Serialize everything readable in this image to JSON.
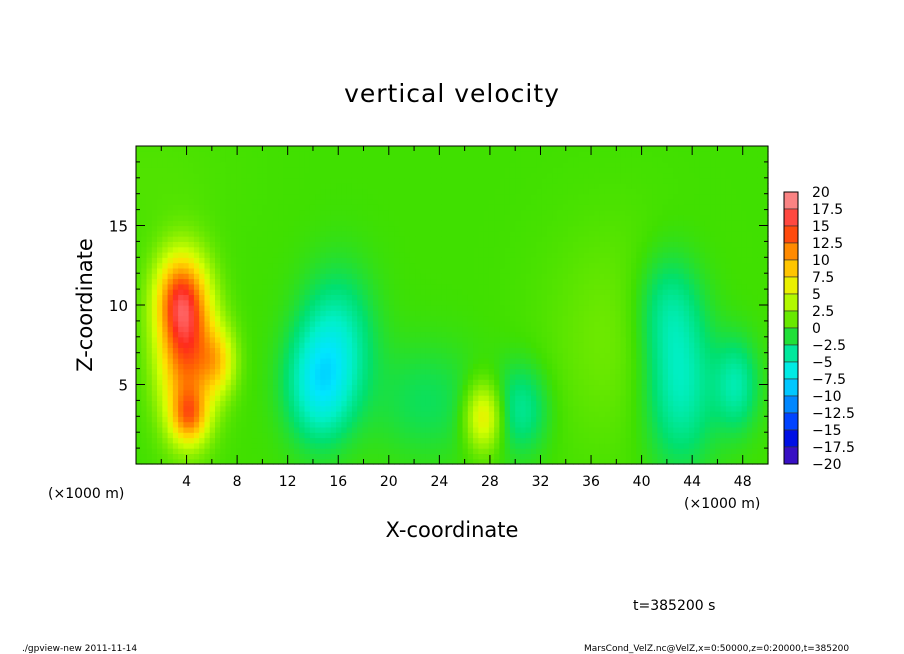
{
  "chart_data": {
    "type": "heatmap",
    "title": "vertical velocity",
    "xlabel": "X-coordinate",
    "ylabel": "Z-coordinate",
    "x_unit_left": "(×1000 m)",
    "x_unit_right": "(×1000 m)",
    "xlim": [
      0,
      50
    ],
    "ylim": [
      0,
      20
    ],
    "x_ticks": [
      4,
      8,
      12,
      16,
      20,
      24,
      28,
      32,
      36,
      40,
      44,
      48
    ],
    "y_ticks": [
      5,
      10,
      15
    ],
    "colorbar": {
      "labels": [
        "20",
        "17.5",
        "15",
        "12.5",
        "10",
        "7.5",
        "5",
        "2.5",
        "0",
        "−2.5",
        "−5",
        "−7.5",
        "−10",
        "−12.5",
        "−15",
        "−17.5",
        "−20"
      ],
      "colors": [
        "#f4a0a0",
        "#ff6666",
        "#ff2a1a",
        "#ff6a00",
        "#ffaa00",
        "#ffe000",
        "#d4ff00",
        "#90f000",
        "#40e000",
        "#00e070",
        "#00f0c8",
        "#00e6ff",
        "#00a8ff",
        "#0066ff",
        "#0020ff",
        "#0000c8",
        "#7020c0"
      ]
    },
    "features": [
      {
        "x": 4.0,
        "z": 7.0,
        "value": 12,
        "sx": 1.6,
        "sz": 3.2
      },
      {
        "x": 3.5,
        "z": 10.5,
        "value": 10,
        "sx": 1.4,
        "sz": 2.0
      },
      {
        "x": 6.5,
        "z": 6.5,
        "value": 6,
        "sx": 1.0,
        "sz": 1.5
      },
      {
        "x": 4.2,
        "z": 3.0,
        "value": 8,
        "sx": 1.0,
        "sz": 1.2
      },
      {
        "x": 14.5,
        "z": 5.0,
        "value": -6,
        "sx": 1.8,
        "sz": 2.5
      },
      {
        "x": 16.0,
        "z": 8.0,
        "value": -4,
        "sx": 2.0,
        "sz": 3.0
      },
      {
        "x": 27.5,
        "z": 3.0,
        "value": 7,
        "sx": 1.0,
        "sz": 1.5
      },
      {
        "x": 30.5,
        "z": 3.5,
        "value": -3.5,
        "sx": 1.5,
        "sz": 2.0
      },
      {
        "x": 23.0,
        "z": 4.0,
        "value": -2,
        "sx": 3.0,
        "sz": 2.5
      },
      {
        "x": 43.0,
        "z": 5.0,
        "value": -5,
        "sx": 2.0,
        "sz": 3.5
      },
      {
        "x": 42.0,
        "z": 10.0,
        "value": -3,
        "sx": 1.8,
        "sz": 2.5
      },
      {
        "x": 47.5,
        "z": 5.0,
        "value": -4,
        "sx": 1.2,
        "sz": 2.0
      },
      {
        "x": 38.0,
        "z": 8.0,
        "value": 1.5,
        "sx": 4.0,
        "sz": 5.0
      },
      {
        "x": 1.0,
        "z": 18.0,
        "value": 0.5,
        "sx": 5.0,
        "sz": 3.0
      }
    ]
  },
  "annotations": {
    "time": "t=385200 s",
    "footer_left": "./gpview-new   2011-11-14",
    "footer_right": "MarsCond_VelZ.nc@VelZ,x=0:50000,z=0:20000,t=385200"
  }
}
